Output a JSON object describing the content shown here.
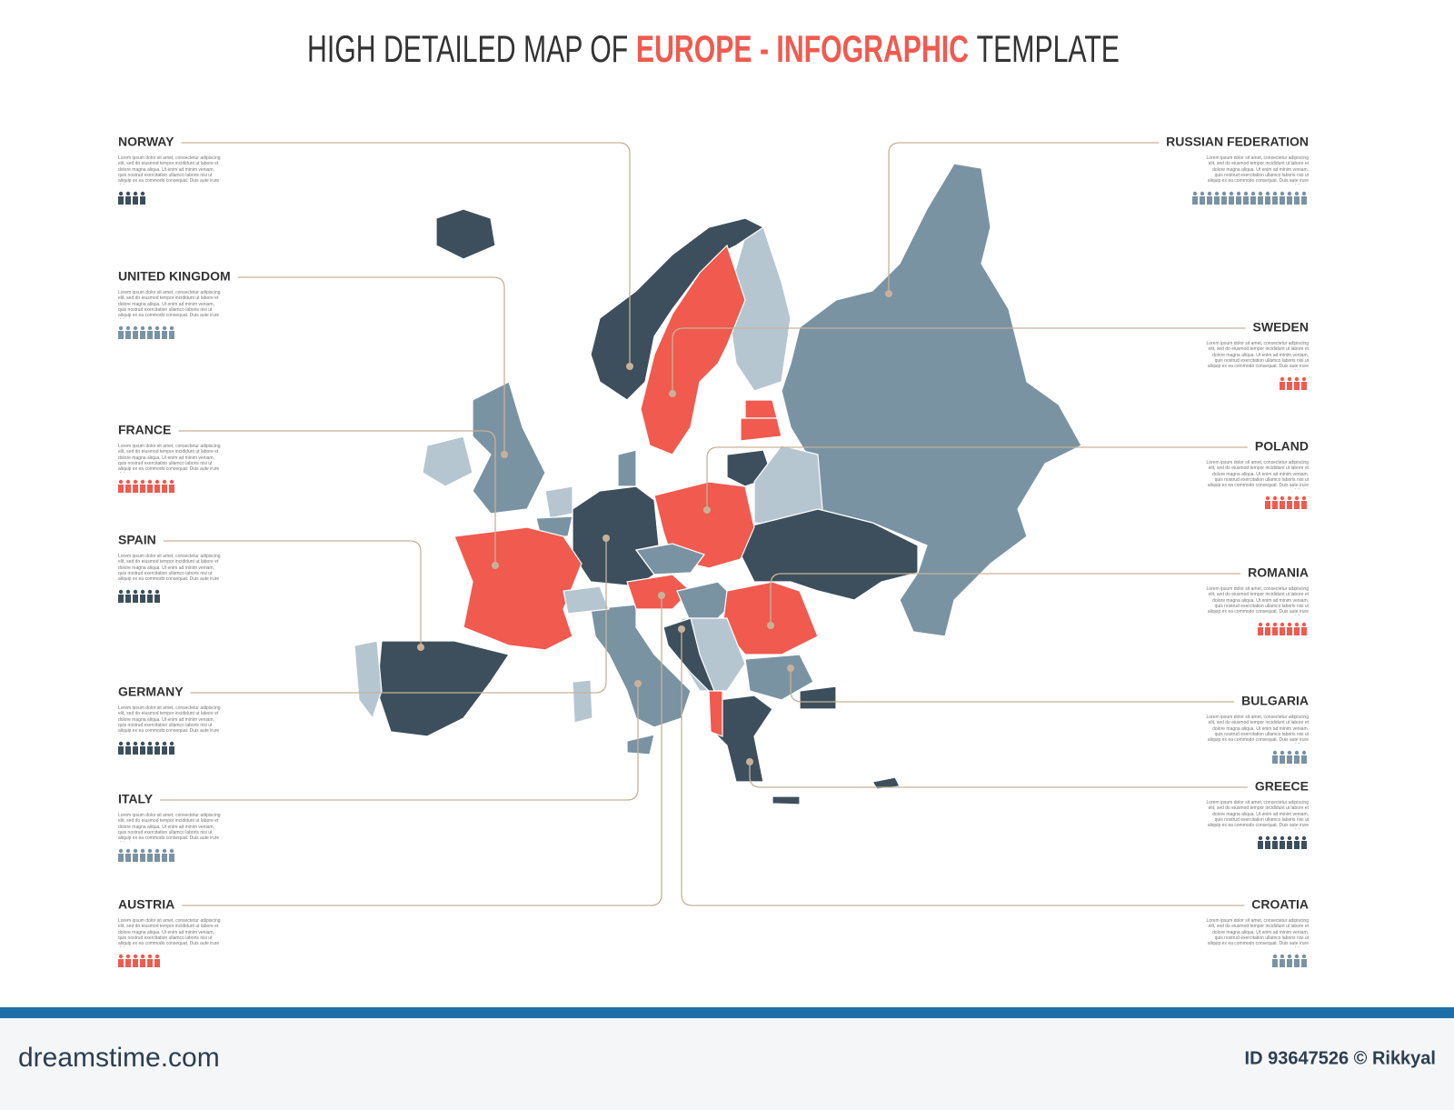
{
  "header": {
    "title_start": "HIGH DETAILED MAP OF",
    "title_highlight": "EUROPE - INFOGRAPHIC",
    "title_end": "TEMPLATE"
  },
  "description": "Lorem ipsum dolor sit amet, consectetur adipiscing elit, sed do eiusmod tempor incididunt ut labore et dolore magna aliqua. Ut enim ad minim veniam, quis nostrud exercitation ullamco laboris nisi ut aliquip ex ea commodo consequat. Duis aute irure dolor in",
  "countries": [
    {
      "name": "NORWAY",
      "people": 4,
      "color": "#3d4f5c"
    },
    {
      "name": "UNITED KINGDOM",
      "people": 8,
      "color": "#7a93a3"
    },
    {
      "name": "FRANCE",
      "people": 8,
      "color": "#f05a4f"
    },
    {
      "name": "SPAIN",
      "people": 6,
      "color": "#3d4f5c"
    },
    {
      "name": "GERMANY",
      "people": 8,
      "color": "#3d4f5c"
    },
    {
      "name": "ITALY",
      "people": 8,
      "color": "#7a93a3"
    },
    {
      "name": "AUSTRIA",
      "people": 6,
      "color": "#f05a4f"
    },
    {
      "name": "RUSSIAN FEDERATION",
      "people": 16,
      "color": "#7a93a3"
    },
    {
      "name": "SWEDEN",
      "people": 4,
      "color": "#f05a4f"
    },
    {
      "name": "POLAND",
      "people": 6,
      "color": "#f05a4f"
    },
    {
      "name": "ROMANIA",
      "people": 7,
      "color": "#f05a4f"
    },
    {
      "name": "BULGARIA",
      "people": 5,
      "color": "#7a93a3"
    },
    {
      "name": "GREECE",
      "people": 7,
      "color": "#3d4f5c"
    },
    {
      "name": "CROATIA",
      "people": 5,
      "color": "#7a93a3"
    }
  ],
  "footer": {
    "brand": "dreamstime.com",
    "credit": "ID 93647526 © Rikkyal"
  }
}
